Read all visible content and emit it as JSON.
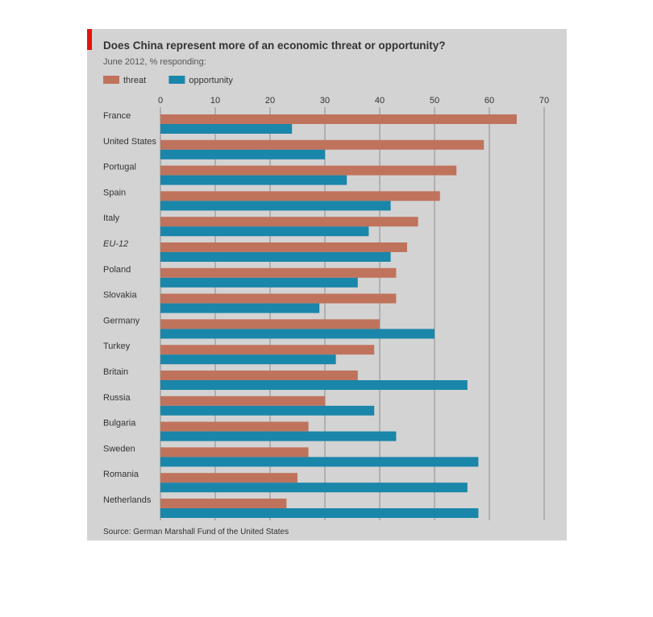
{
  "chart_data": {
    "type": "bar",
    "orientation": "horizontal",
    "title": "Does China represent more of an economic threat or opportunity?",
    "subtitle": "June 2012, % responding:",
    "categories": [
      "France",
      "United States",
      "Portugal",
      "Spain",
      "Italy",
      "EU-12",
      "Poland",
      "Slovakia",
      "Germany",
      "Turkey",
      "Britain",
      "Russia",
      "Bulgaria",
      "Sweden",
      "Romania",
      "Netherlands"
    ],
    "series": [
      {
        "name": "threat",
        "color": "#c0735c",
        "values": [
          65,
          59,
          54,
          51,
          47,
          45,
          43,
          43,
          40,
          39,
          36,
          30,
          27,
          27,
          25,
          23
        ]
      },
      {
        "name": "opportunity",
        "color": "#1a86aa",
        "values": [
          24,
          30,
          34,
          42,
          38,
          42,
          36,
          29,
          50,
          32,
          56,
          39,
          43,
          58,
          56,
          58
        ]
      }
    ],
    "xaxis": {
      "min": 0,
      "max": 70,
      "ticks": [
        0,
        10,
        20,
        30,
        40,
        50,
        60,
        70
      ],
      "position": "top"
    },
    "grid": true,
    "legend": "top-left",
    "source": "Source: German Marshall Fund of the United States",
    "colors": {
      "background": "#d3d3d3",
      "gridline": "#9a9a9a",
      "text": "#333333",
      "title": "#333333",
      "accent": "#e3120b"
    },
    "italic_categories": [
      "EU-12"
    ]
  }
}
